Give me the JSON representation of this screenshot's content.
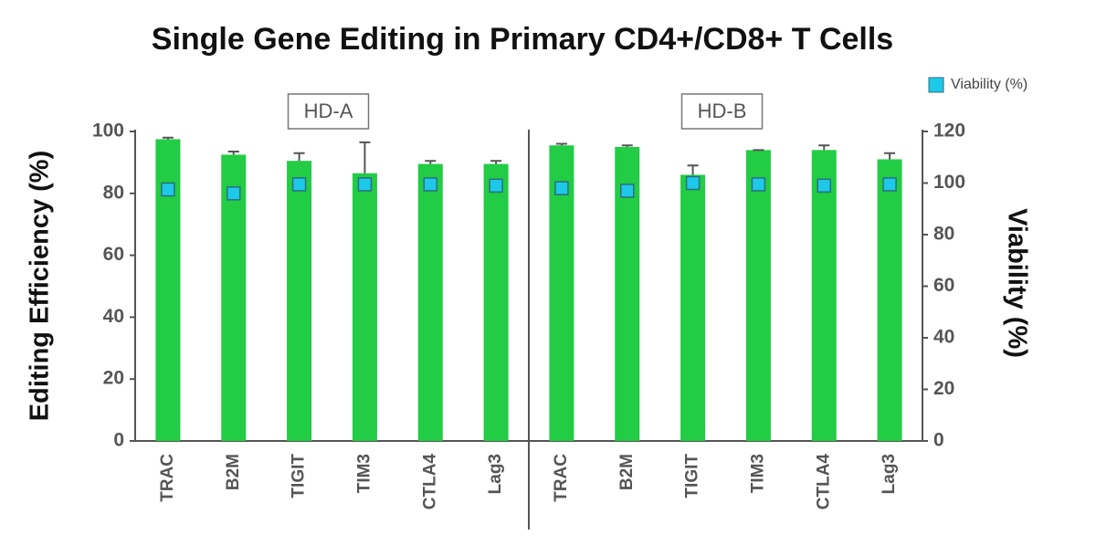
{
  "chart_data": {
    "type": "bar",
    "title": "Single Gene Editing in Primary CD4+/CD8+ T Cells",
    "ylabel": "Editing Efficiency (%)",
    "y2label": "Viability (%)",
    "ylim": [
      0,
      100
    ],
    "yticks": [
      0,
      20,
      40,
      60,
      80,
      100
    ],
    "y2lim": [
      0,
      120
    ],
    "y2ticks": [
      0,
      20,
      40,
      60,
      80,
      100,
      120
    ],
    "legend": "top-right",
    "panels": [
      {
        "label": "HD-A",
        "categories": [
          "TRAC",
          "B2M",
          "TIGIT",
          "TIM3",
          "CTLA4",
          "Lag3"
        ],
        "series": [
          {
            "color": "#22cc44",
            "values": [
              97.5,
              92.5,
              90.5,
              86.5,
              89.5,
              89.5
            ],
            "errors": [
              0.5,
              1,
              2.5,
              10,
              1,
              1
            ]
          },
          {
            "name": "Viability (%)",
            "color": "#1ec8e8",
            "axis": "y2",
            "values": [
              97.5,
              96,
              99.5,
              99.5,
              99.5,
              99
            ]
          }
        ]
      },
      {
        "label": "HD-B",
        "categories": [
          "TRAC",
          "B2M",
          "TIGIT",
          "TIM3",
          "CTLA4",
          "Lag3"
        ],
        "series": [
          {
            "color": "#22cc44",
            "values": [
              95.5,
              95,
              86,
              94,
              94,
              91
            ],
            "errors": [
              0.5,
              0.5,
              3,
              0,
              1.5,
              2
            ]
          },
          {
            "name": "Viability (%)",
            "color": "#1ec8e8",
            "axis": "y2",
            "values": [
              98,
              97,
              100,
              99.5,
              99,
              99.5
            ]
          }
        ]
      }
    ]
  }
}
